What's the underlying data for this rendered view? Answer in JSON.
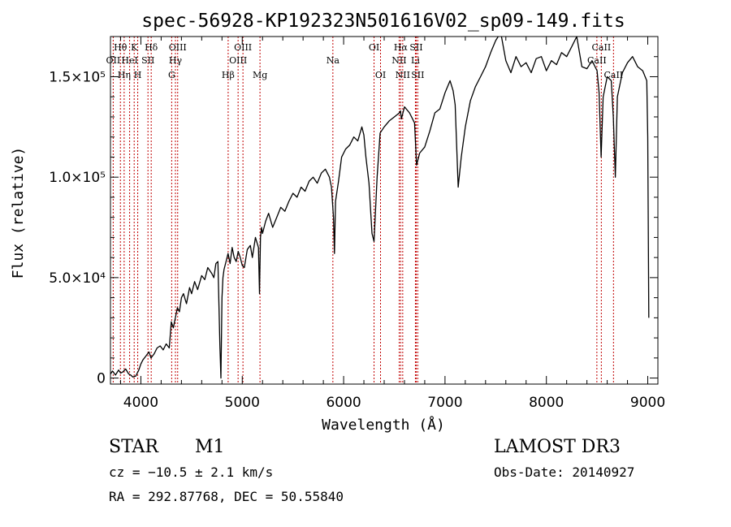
{
  "chart_data": {
    "type": "line",
    "title": "spec-56928-KP192323N501616V02_sp09-149.fits",
    "xlabel": "Wavelength (Å)",
    "ylabel": "Flux (relative)",
    "xlim": [
      3700,
      9100
    ],
    "ylim": [
      -3000,
      170000
    ],
    "xticks": [
      {
        "value": 4000,
        "label": "4000"
      },
      {
        "value": 5000,
        "label": "5000"
      },
      {
        "value": 6000,
        "label": "6000"
      },
      {
        "value": 7000,
        "label": "7000"
      },
      {
        "value": 8000,
        "label": "8000"
      },
      {
        "value": 9000,
        "label": "9000"
      }
    ],
    "yticks": [
      {
        "value": 0,
        "label": "0"
      },
      {
        "value": 50000,
        "label": "5.0×10⁴"
      },
      {
        "value": 100000,
        "label": "1.0×10⁵"
      },
      {
        "value": 150000,
        "label": "1.5×10⁵"
      }
    ],
    "series": [
      {
        "name": "spectrum",
        "x": [
          3700,
          3720,
          3750,
          3780,
          3800,
          3820,
          3850,
          3880,
          3900,
          3920,
          3950,
          3980,
          4000,
          4020,
          4050,
          4080,
          4100,
          4130,
          4160,
          4190,
          4220,
          4250,
          4280,
          4300,
          4320,
          4340,
          4360,
          4380,
          4400,
          4420,
          4450,
          4480,
          4500,
          4530,
          4560,
          4600,
          4630,
          4660,
          4700,
          4720,
          4740,
          4760,
          4780,
          4790,
          4800,
          4810,
          4820,
          4840,
          4860,
          4880,
          4900,
          4920,
          4940,
          4960,
          4980,
          5000,
          5020,
          5050,
          5080,
          5100,
          5130,
          5160,
          5170,
          5180,
          5190,
          5200,
          5230,
          5260,
          5300,
          5340,
          5380,
          5420,
          5460,
          5500,
          5540,
          5580,
          5620,
          5660,
          5700,
          5740,
          5780,
          5820,
          5860,
          5880,
          5900,
          5910,
          5920,
          5950,
          5980,
          6020,
          6060,
          6100,
          6140,
          6180,
          6200,
          6220,
          6250,
          6280,
          6300,
          6330,
          6360,
          6400,
          6450,
          6500,
          6550,
          6560,
          6570,
          6600,
          6650,
          6700,
          6720,
          6750,
          6800,
          6850,
          6900,
          6950,
          7000,
          7050,
          7080,
          7100,
          7130,
          7160,
          7200,
          7250,
          7300,
          7350,
          7400,
          7450,
          7500,
          7550,
          7600,
          7650,
          7700,
          7750,
          7800,
          7850,
          7900,
          7950,
          8000,
          8050,
          8100,
          8150,
          8200,
          8250,
          8300,
          8350,
          8400,
          8450,
          8480,
          8500,
          8520,
          8540,
          8560,
          8600,
          8640,
          8660,
          8680,
          8700,
          8750,
          8800,
          8850,
          8900,
          8950,
          8990,
          9000,
          9010
        ],
        "values": [
          2000,
          3500,
          1500,
          4000,
          2500,
          3000,
          4500,
          2000,
          1500,
          500,
          1000,
          4000,
          7000,
          9000,
          11000,
          13000,
          10000,
          12000,
          15000,
          16000,
          14000,
          17000,
          15000,
          28000,
          25000,
          30000,
          35000,
          33000,
          40000,
          42000,
          37000,
          45000,
          42000,
          48000,
          44000,
          51000,
          49000,
          55000,
          52000,
          50000,
          57000,
          58000,
          15000,
          0,
          40000,
          50000,
          54000,
          58000,
          62000,
          57000,
          65000,
          60000,
          58000,
          63000,
          60000,
          56000,
          55000,
          64000,
          66000,
          60000,
          70000,
          65000,
          42000,
          70000,
          75000,
          72000,
          78000,
          82000,
          75000,
          80000,
          85000,
          83000,
          88000,
          92000,
          90000,
          95000,
          93000,
          98000,
          100000,
          97000,
          102000,
          104000,
          100000,
          95000,
          80000,
          62000,
          88000,
          98000,
          110000,
          114000,
          116000,
          120000,
          118000,
          125000,
          121000,
          110000,
          97000,
          72000,
          68000,
          100000,
          122000,
          125000,
          128000,
          130000,
          132000,
          133000,
          129000,
          135000,
          132000,
          127000,
          106000,
          112000,
          115000,
          123000,
          132000,
          134000,
          142000,
          148000,
          143000,
          136000,
          95000,
          110000,
          125000,
          138000,
          145000,
          150000,
          155000,
          162000,
          168000,
          172000,
          158000,
          152000,
          160000,
          155000,
          157000,
          152000,
          159000,
          160000,
          153000,
          158000,
          156000,
          162000,
          160000,
          165000,
          170000,
          155000,
          154000,
          158000,
          155000,
          153000,
          142000,
          110000,
          140000,
          150000,
          148000,
          130000,
          100000,
          140000,
          152000,
          157000,
          160000,
          155000,
          153000,
          148000,
          120000,
          30000
        ]
      }
    ],
    "lines": [
      {
        "w": 3727,
        "label": "OII",
        "row": 2
      },
      {
        "w": 3798,
        "label": "Hθ",
        "row": 1
      },
      {
        "w": 3835,
        "label": "Hη",
        "row": 3
      },
      {
        "w": 3889,
        "label": "HeI",
        "row": 2
      },
      {
        "w": 3934,
        "label": "K",
        "row": 1
      },
      {
        "w": 3969,
        "label": "H",
        "row": 3
      },
      {
        "w": 4070,
        "label": "SII",
        "row": 2
      },
      {
        "w": 4102,
        "label": "Hδ",
        "row": 1
      },
      {
        "w": 4304,
        "label": "G",
        "row": 3
      },
      {
        "w": 4341,
        "label": "Hγ",
        "row": 2
      },
      {
        "w": 4363,
        "label": "OIII",
        "row": 1
      },
      {
        "w": 4861,
        "label": "Hβ",
        "row": 3
      },
      {
        "w": 4959,
        "label": "OIII",
        "row": 2
      },
      {
        "w": 5007,
        "label": "OIII",
        "row": 1
      },
      {
        "w": 5175,
        "label": "Mg",
        "row": 3
      },
      {
        "w": 5894,
        "label": "Na",
        "row": 2
      },
      {
        "w": 6300,
        "label": "OI",
        "row": 1
      },
      {
        "w": 6364,
        "label": "OI",
        "row": 3
      },
      {
        "w": 6548,
        "label": "NII",
        "row": 2
      },
      {
        "w": 6563,
        "label": "Hα",
        "row": 1
      },
      {
        "w": 6583,
        "label": "NII",
        "row": 3
      },
      {
        "w": 6708,
        "label": "Li",
        "row": 2
      },
      {
        "w": 6716,
        "label": "SII",
        "row": 1
      },
      {
        "w": 6731,
        "label": "SII",
        "row": 3
      },
      {
        "w": 8498,
        "label": "CaII",
        "row": 2
      },
      {
        "w": 8542,
        "label": "CaII",
        "row": 1
      },
      {
        "w": 8662,
        "label": "CaII",
        "row": 3
      }
    ]
  },
  "info": {
    "object_class": "STAR",
    "subclass": "M1",
    "survey": "LAMOST DR3",
    "redshift_text": "cz = −10.5 ± 2.1 km/s",
    "obs_date": "Obs-Date: 20140927",
    "radec": "RA = 292.87768, DEC =  50.55840"
  },
  "colors": {
    "line_marker": "#c00000",
    "spectrum": "#000000",
    "axis": "#000000"
  }
}
